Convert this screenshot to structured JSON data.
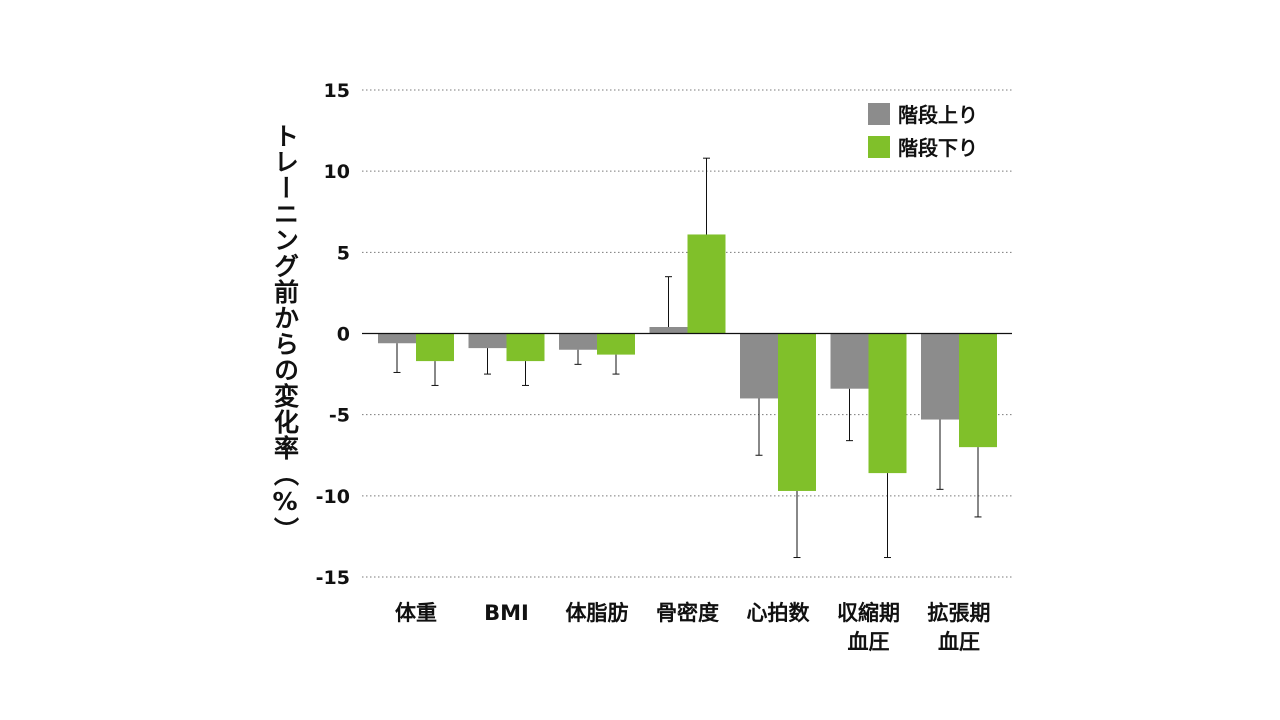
{
  "chart_data": {
    "type": "bar",
    "title": "",
    "xlabel": "",
    "ylabel": "トレーニング前からの変化率（%）",
    "ylim": [
      -15,
      15
    ],
    "yticks": [
      15,
      10,
      5,
      0,
      -5,
      -10,
      -15
    ],
    "ytick_labels": [
      "15",
      "10",
      "5",
      "0",
      "-5",
      "-10",
      "-15"
    ],
    "grid": true,
    "grid_style": "dotted",
    "legend_position": "top-right",
    "categories": [
      [
        "体重"
      ],
      [
        "BMI"
      ],
      [
        "体脂肪"
      ],
      [
        "骨密度"
      ],
      [
        "心拍数"
      ],
      [
        "収縮期",
        "血圧"
      ],
      [
        "拡張期",
        "血圧"
      ]
    ],
    "series": [
      {
        "name": "階段上り",
        "color": "#8c8c8c",
        "values": [
          -0.6,
          -0.9,
          -1.0,
          0.4,
          -4.0,
          -3.4,
          -5.3
        ],
        "error": [
          1.8,
          1.6,
          0.9,
          3.1,
          3.5,
          3.2,
          4.3
        ]
      },
      {
        "name": "階段下り",
        "color": "#80c02a",
        "values": [
          -1.7,
          -1.7,
          -1.3,
          6.1,
          -9.7,
          -8.6,
          -7.0
        ],
        "error": [
          1.5,
          1.5,
          1.2,
          4.7,
          4.1,
          5.2,
          4.3
        ]
      }
    ]
  }
}
